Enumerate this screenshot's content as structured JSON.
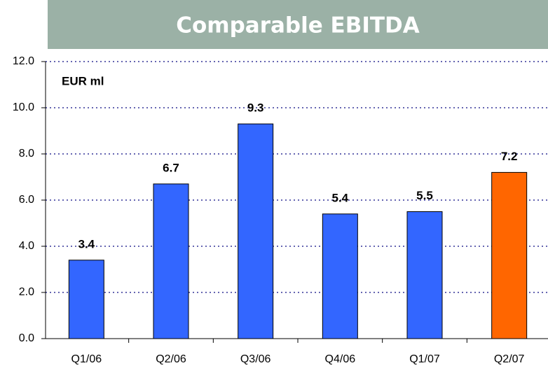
{
  "chart_data": {
    "type": "bar",
    "title": "Comparable EBITDA",
    "annotation": "EUR ml",
    "categories": [
      "Q1/06",
      "Q2/06",
      "Q3/06",
      "Q4/06",
      "Q1/07",
      "Q2/07"
    ],
    "values": [
      3.4,
      6.7,
      9.3,
      5.4,
      5.5,
      7.2
    ],
    "colors": [
      "#3366ff",
      "#3366ff",
      "#3366ff",
      "#3366ff",
      "#3366ff",
      "#ff6600"
    ],
    "ylim": [
      0,
      12
    ],
    "yticks": [
      {
        "value": 0,
        "label": "0.0"
      },
      {
        "value": 2,
        "label": "2.0"
      },
      {
        "value": 4,
        "label": "4.0"
      },
      {
        "value": 6,
        "label": "6.0"
      },
      {
        "value": 8,
        "label": "8.0"
      },
      {
        "value": 10,
        "label": "10.0"
      },
      {
        "value": 12,
        "label": "12.0"
      }
    ],
    "grid": true
  }
}
